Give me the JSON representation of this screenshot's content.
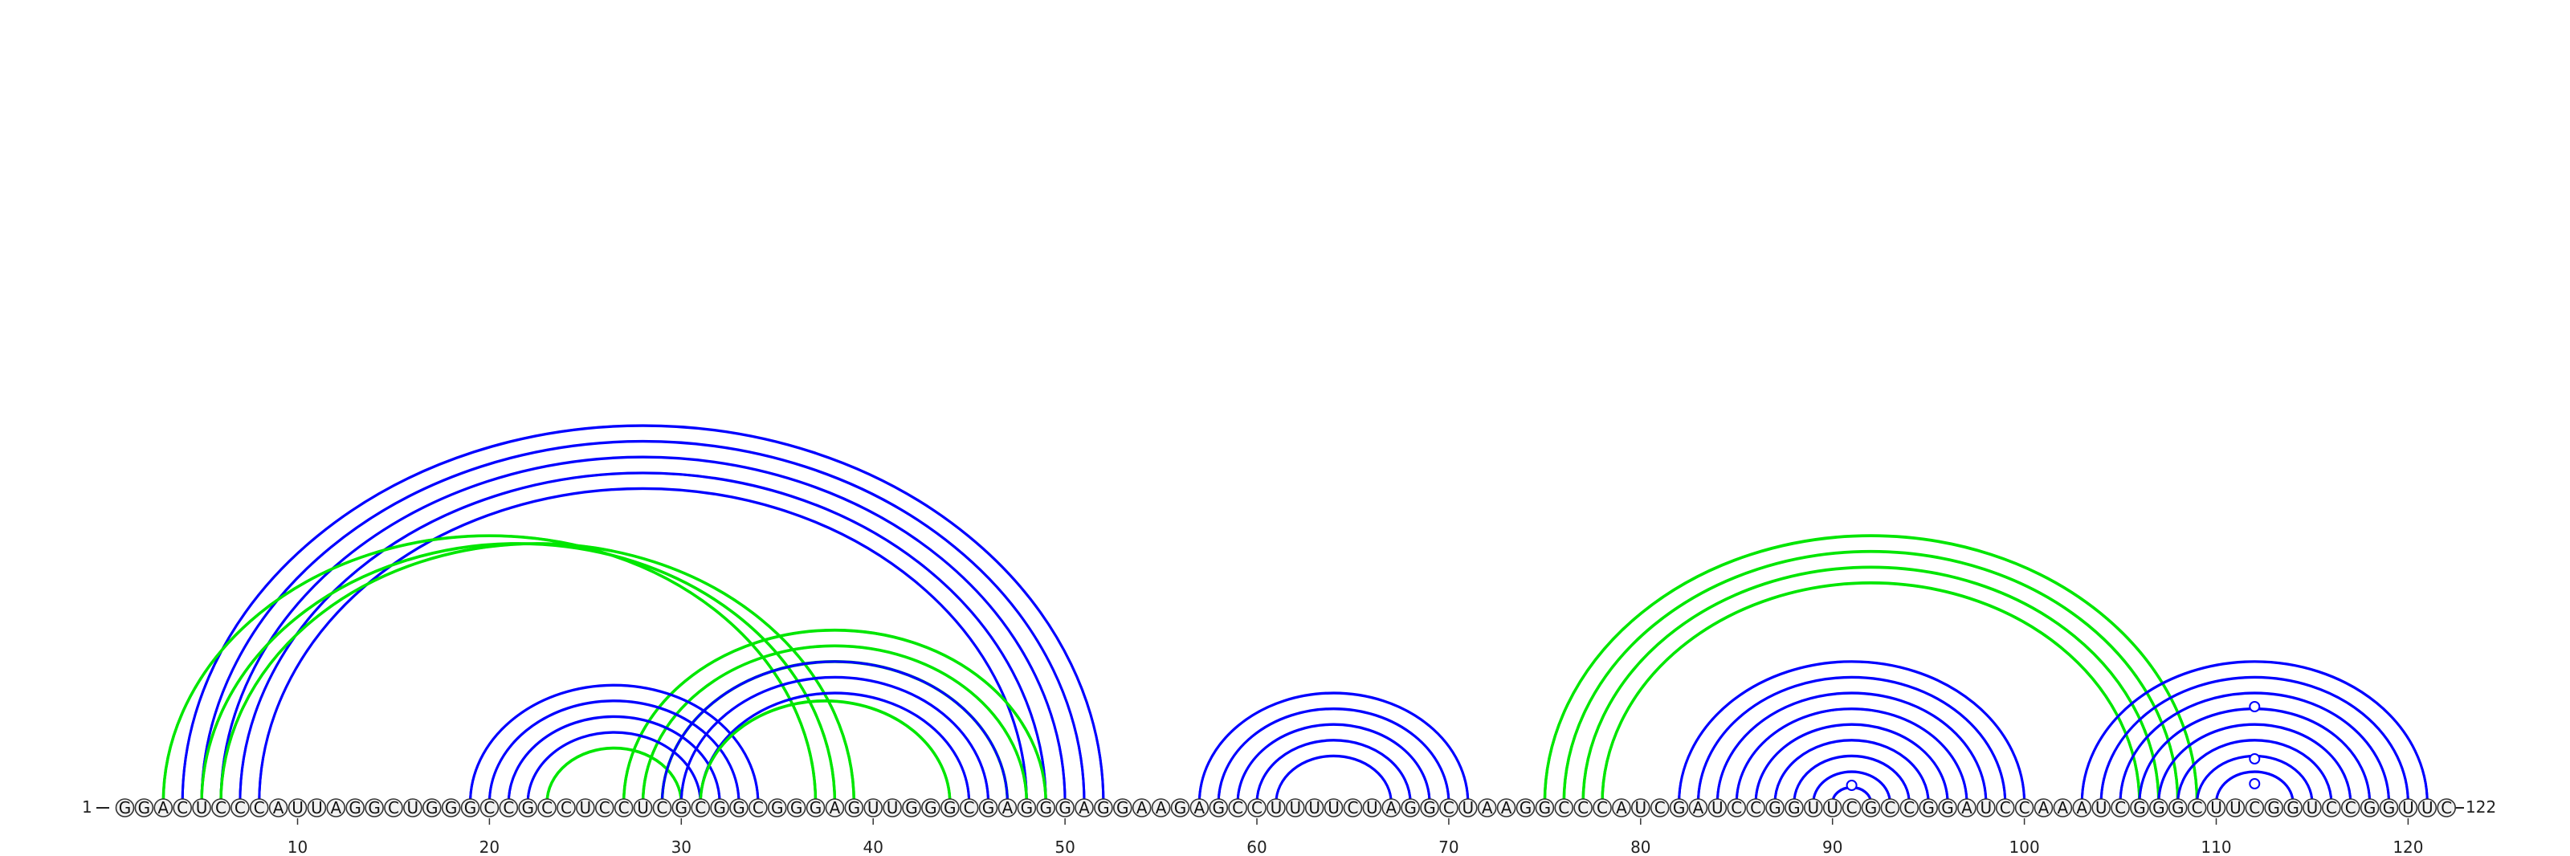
{
  "diagram": {
    "start_label": "1",
    "end_label": "122",
    "sequence": "GGACUCCCAUUAGGCUGGGCCGCCUCCUCGCGGCGGGAGUUGGGCGAGGGAGGAAGAGCCUUUUCUAGGCUAAGGCCCAUCGAUCCGGUUCGCCGGAUCCAAAUCGGGCUUCGGUCCGGUUC",
    "ticks": [
      10,
      20,
      30,
      40,
      50,
      60,
      70,
      80,
      90,
      100,
      110,
      120
    ],
    "colors": {
      "blue": "#0000ff",
      "green": "#00e600",
      "base_fill": "#f2f2f2",
      "base_stroke": "#333333",
      "text": "#222222"
    },
    "arcs": [
      {
        "color": "blue",
        "pairs": [
          [
            4,
            52
          ],
          [
            5,
            51
          ],
          [
            6,
            50
          ],
          [
            7,
            49
          ],
          [
            8,
            48
          ]
        ]
      },
      {
        "color": "green",
        "pairs": [
          [
            3,
            37
          ],
          [
            5,
            38
          ],
          [
            6,
            39
          ]
        ]
      },
      {
        "color": "green",
        "pairs": [
          [
            27,
            49
          ],
          [
            28,
            48
          ],
          [
            29,
            47
          ]
        ]
      },
      {
        "color": "blue",
        "pairs": [
          [
            19,
            34
          ],
          [
            20,
            33
          ],
          [
            21,
            32
          ],
          [
            22,
            31
          ]
        ]
      },
      {
        "color": "green",
        "pairs": [
          [
            23,
            30
          ]
        ]
      },
      {
        "color": "blue",
        "pairs": [
          [
            29,
            47
          ],
          [
            30,
            46
          ],
          [
            31,
            45
          ]
        ]
      },
      {
        "color": "green",
        "pairs": [
          [
            31,
            44
          ]
        ]
      },
      {
        "color": "blue",
        "pairs": [
          [
            57,
            71
          ],
          [
            58,
            70
          ],
          [
            59,
            69
          ],
          [
            60,
            68
          ],
          [
            61,
            67
          ]
        ]
      },
      {
        "color": "green",
        "pairs": [
          [
            75,
            109
          ],
          [
            76,
            108
          ],
          [
            77,
            107
          ],
          [
            78,
            106
          ]
        ]
      },
      {
        "color": "blue",
        "pairs": [
          [
            82,
            100
          ],
          [
            83,
            99
          ],
          [
            84,
            98
          ],
          [
            85,
            97
          ],
          [
            86,
            96
          ],
          [
            87,
            95
          ],
          [
            88,
            94
          ],
          [
            89,
            93
          ],
          [
            90,
            92
          ]
        ]
      },
      {
        "color": "blue",
        "pairs": [
          [
            103,
            121
          ],
          [
            104,
            120
          ],
          [
            105,
            119
          ],
          [
            106,
            118
          ],
          [
            107,
            117
          ],
          [
            108,
            116
          ],
          [
            109,
            115
          ],
          [
            110,
            114
          ]
        ]
      }
    ],
    "markers": [
      91,
      112,
      112,
      112
    ]
  }
}
